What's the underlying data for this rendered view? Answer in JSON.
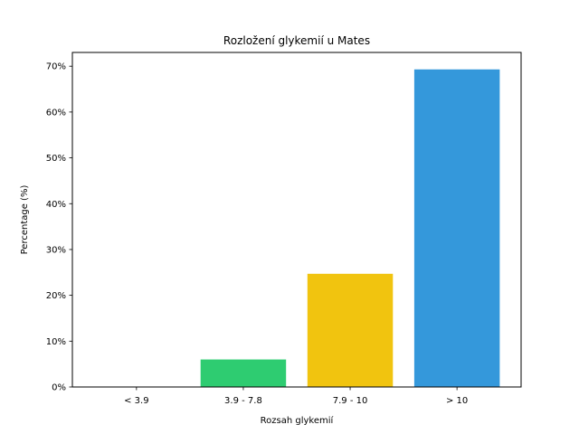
{
  "chart_data": {
    "type": "bar",
    "title": "Rozložení glykemií u  Mates",
    "xlabel": "Rozsah glykemií",
    "ylabel": "Percentage (%)",
    "categories": [
      "< 3.9",
      "3.9 - 7.8",
      "7.9 - 10",
      "> 10"
    ],
    "values": [
      0,
      6,
      24.7,
      69.3
    ],
    "colors": [
      "#e74c3c",
      "#2ecc71",
      "#f1c40f",
      "#3498db"
    ],
    "ylim": [
      0,
      73
    ],
    "yticks": [
      0,
      10,
      20,
      30,
      40,
      50,
      60,
      70
    ],
    "ytick_labels": [
      "0%",
      "10%",
      "20%",
      "30%",
      "40%",
      "50%",
      "60%",
      "70%"
    ],
    "grid": false,
    "legend": "none"
  }
}
